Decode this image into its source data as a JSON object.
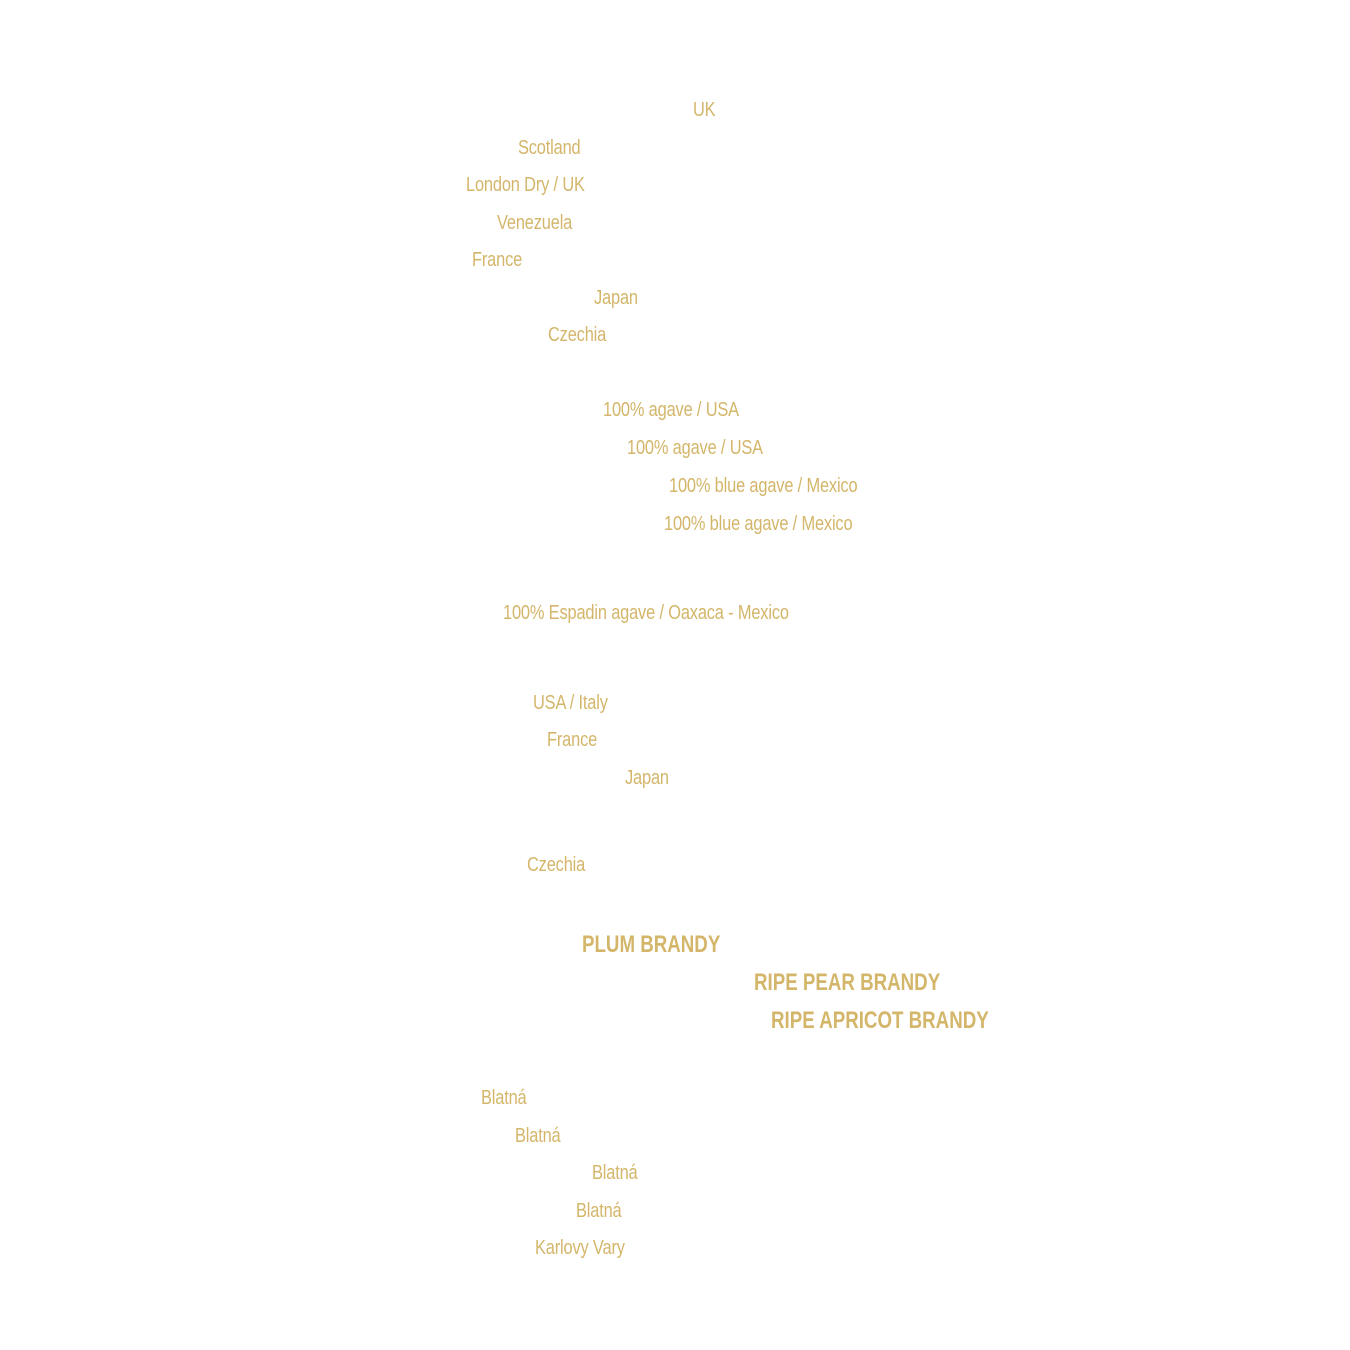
{
  "colors": {
    "gold": "#d4b66a",
    "background": "#ffffff"
  },
  "origins": {
    "gin": [
      "UK",
      "Scotland",
      "London Dry / UK",
      "Venezuela",
      "France",
      "Japan",
      "Czechia"
    ],
    "tequila": [
      "100% agave / USA",
      "100% agave / USA",
      "100% blue agave / Mexico",
      "100% blue agave / Mexico"
    ],
    "mezcal": [
      "100% Espadin agave / Oaxaca - Mexico"
    ],
    "vodka": [
      "USA / Italy",
      "France",
      "Japan"
    ],
    "absinth": [
      "Czechia"
    ],
    "schnapps": [
      "PLUM BRANDY",
      "RIPE PEAR BRANDY",
      "RIPE APRICOT BRANDY"
    ],
    "liqueur": [
      "Blatná",
      "Blatná",
      "Blatná",
      "Blatná",
      "Karlovy Vary"
    ]
  }
}
